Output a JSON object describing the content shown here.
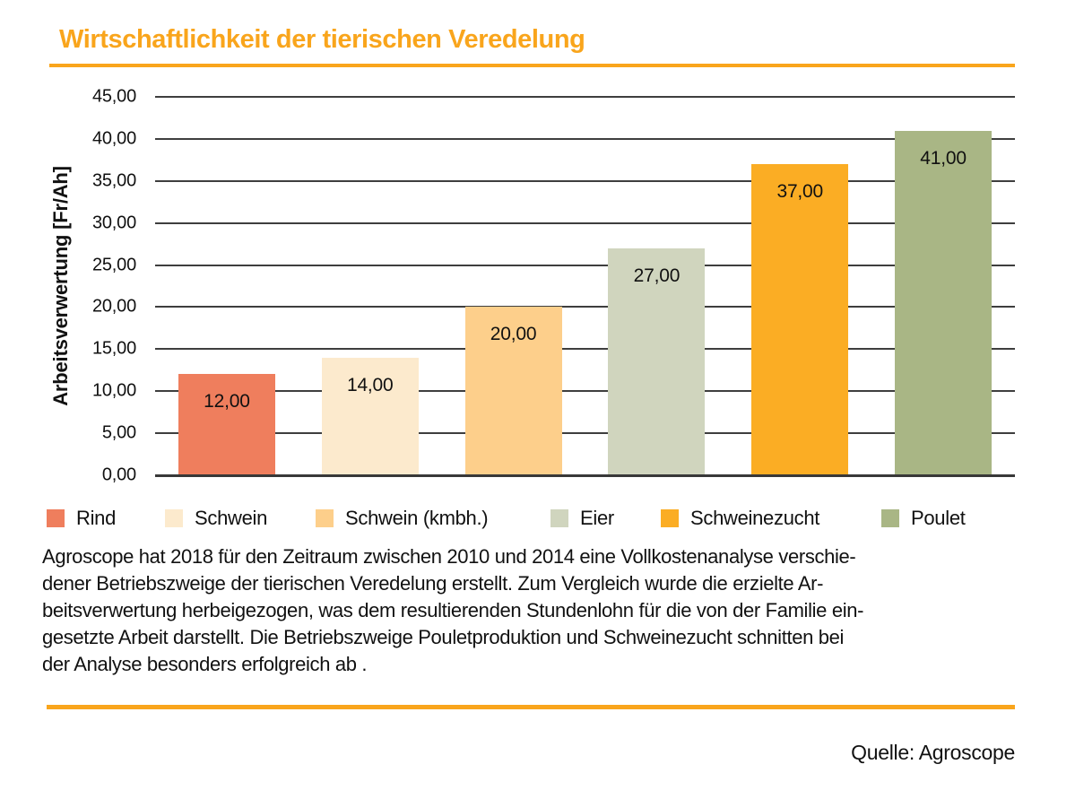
{
  "title": "Wirtschaftlichkeit der tierischen Veredelung",
  "source_credit": "Quelle: Agroscope",
  "accent_color": "#F9A51C",
  "chart_data": {
    "type": "bar",
    "title": "Wirtschaftlichkeit der tierischen Veredelung",
    "categories": [
      "Rind",
      "Schwein",
      "Schwein (kmbh.)",
      "Eier",
      "Schweinezucht",
      "Poulet"
    ],
    "values": [
      12.0,
      14.0,
      20.0,
      27.0,
      37.0,
      41.0
    ],
    "value_labels": [
      "12,00",
      "14,00",
      "20,00",
      "27,00",
      "37,00",
      "41,00"
    ],
    "bar_colors": [
      "#EF7E5D",
      "#FCEACD",
      "#FDCF8B",
      "#D0D5BE",
      "#FBAD24",
      "#A9B685"
    ],
    "xlabel": "",
    "ylabel": "Arbeitsverwertung [Fr/Ah]",
    "ylim": [
      0,
      45
    ],
    "ytick_step": 5,
    "ytick_labels": [
      "45,00",
      "40,00",
      "35,00",
      "30,00",
      "25,00",
      "20,00",
      "15,00",
      "10,00",
      "5,00",
      "0,00"
    ],
    "grid": true,
    "legend_position": "bottom"
  },
  "description_lines": [
    "Agroscope hat 2018 für den Zeitraum zwischen 2010 und 2014 eine Vollkostenanalyse verschie-",
    "dener Betriebszweige der tierischen Veredelung erstellt. Zum Vergleich wurde die erzielte Ar-",
    "beitsverwertung herbeigezogen, was dem resultierenden Stundenlohn für die von der Familie ein-",
    "gesetzte Arbeit darstellt. Die Betriebszweige Pouletproduktion und Schweinezucht schnitten bei",
    "der Analyse besonders erfolgreich ab ."
  ]
}
